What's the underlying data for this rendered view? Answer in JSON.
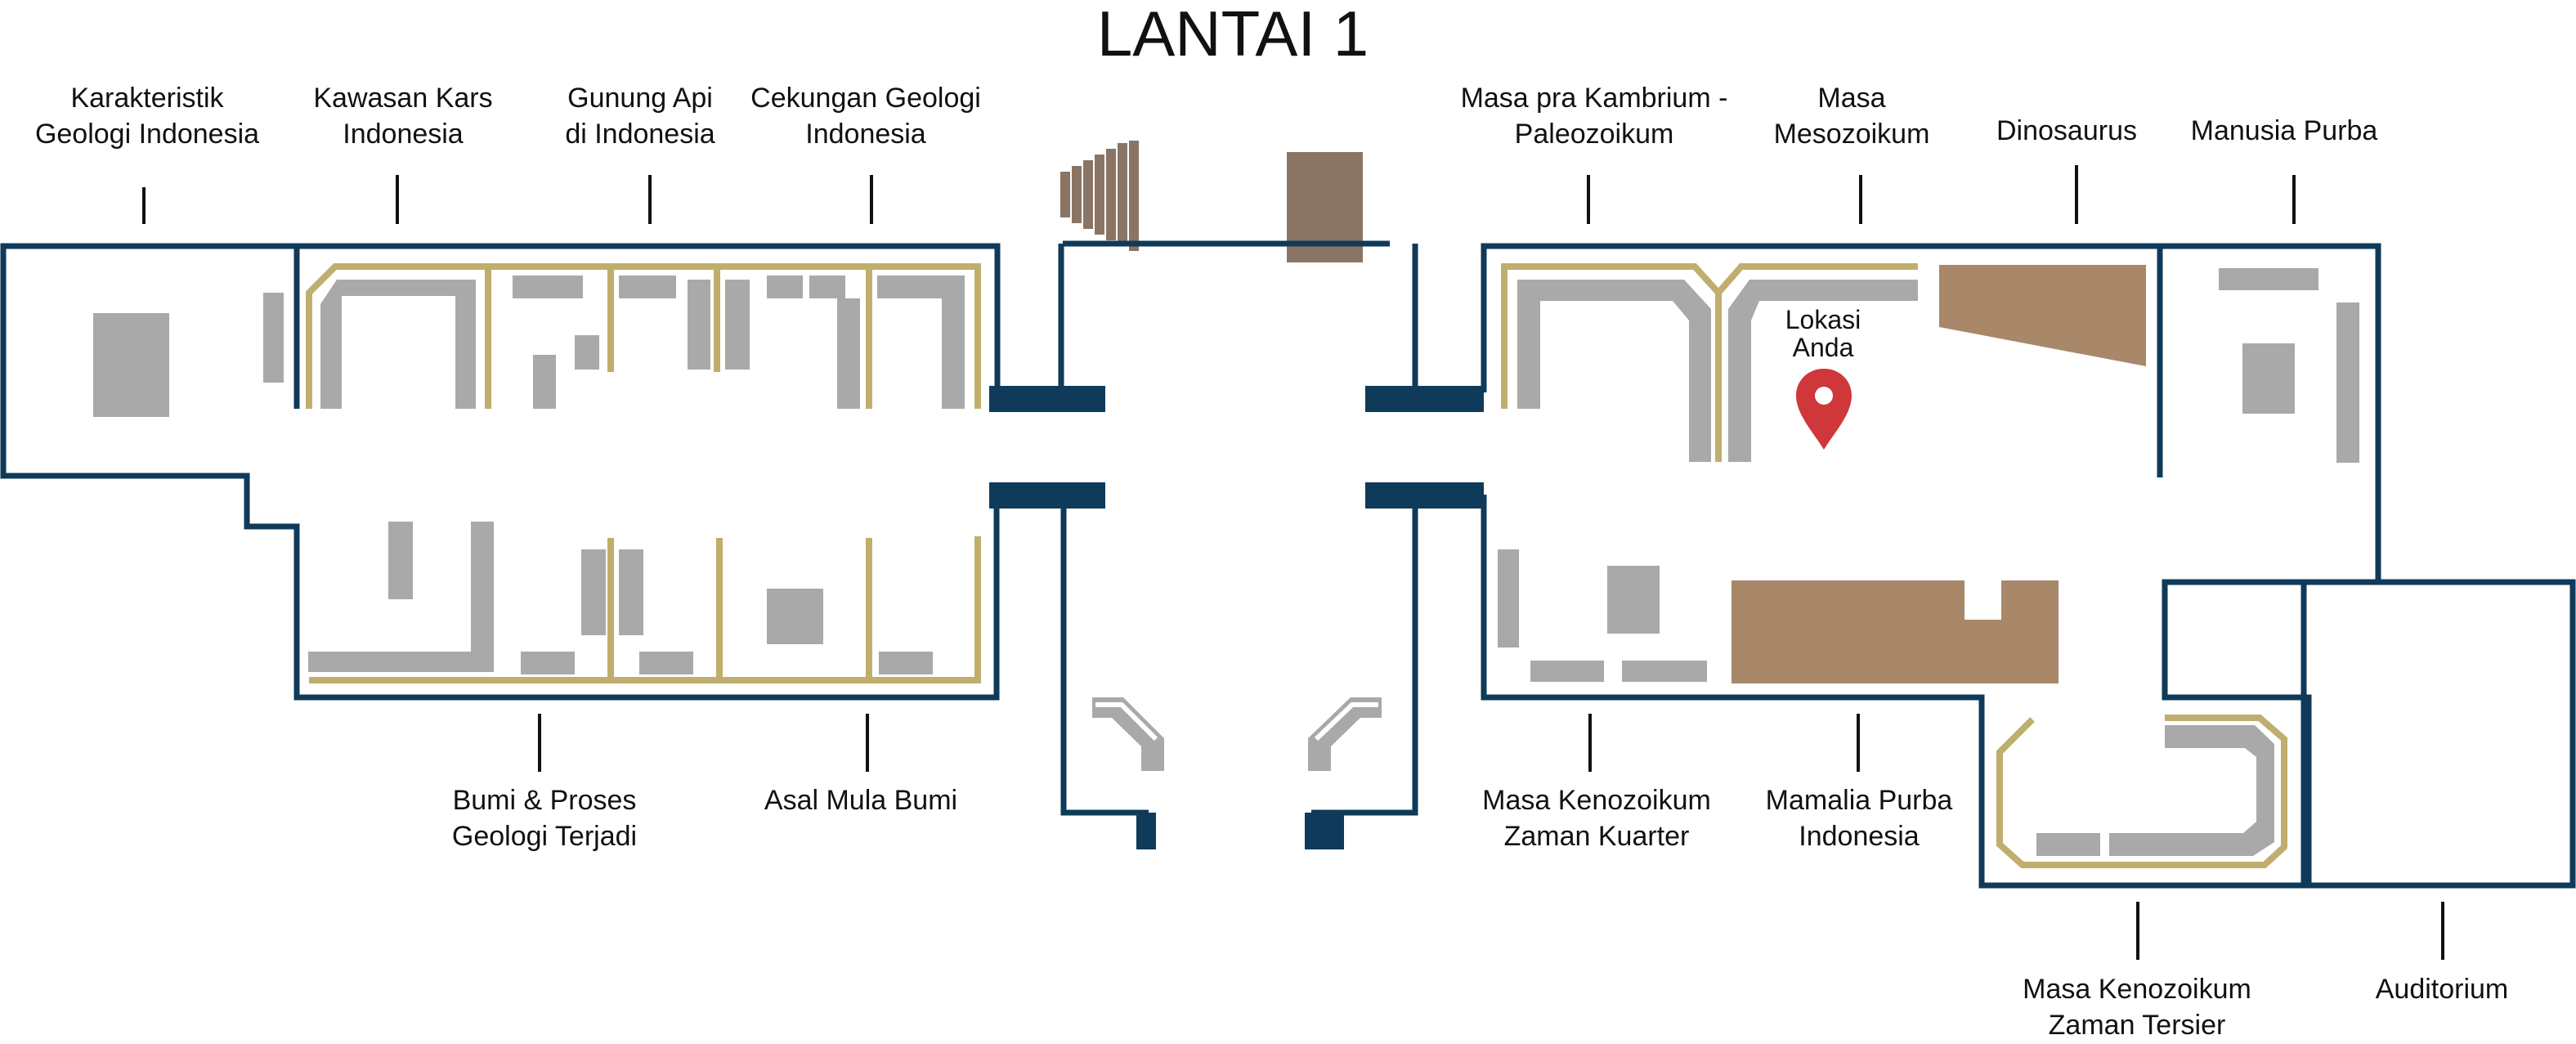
{
  "map": {
    "title": "LANTAI 1",
    "colors": {
      "wall": "#0f3a5a",
      "gold": "#bfae6e",
      "gray": "#a9a9a9",
      "brown": "#a88868",
      "stair": "#8a7565",
      "pin": "#d0373a"
    },
    "you_are_here": {
      "line1": "Lokasi",
      "line2": "Anda",
      "icon": "map-pin-icon"
    },
    "labels": {
      "karakteristik": {
        "line1": "Karakteristik",
        "line2": "Geologi Indonesia"
      },
      "kars": {
        "line1": "Kawasan Kars",
        "line2": "Indonesia"
      },
      "gunung": {
        "line1": "Gunung Api",
        "line2": "di Indonesia"
      },
      "cekungan": {
        "line1": "Cekungan Geologi",
        "line2": "Indonesia"
      },
      "kambrium": {
        "line1": "Masa pra Kambrium -",
        "line2": "Paleozoikum"
      },
      "mesozoikum": {
        "line1": "Masa",
        "line2": "Mesozoikum"
      },
      "dinosaurus": {
        "line1": "Dinosaurus"
      },
      "manusia": {
        "line1": "Manusia Purba"
      },
      "bumi_proses": {
        "line1": "Bumi & Proses",
        "line2": "Geologi Terjadi"
      },
      "asal_mula": {
        "line1": "Asal Mula Bumi"
      },
      "kuarter": {
        "line1": "Masa Kenozoikum",
        "line2": "Zaman Kuarter"
      },
      "mamalia": {
        "line1": "Mamalia Purba",
        "line2": "Indonesia"
      },
      "tersier": {
        "line1": "Masa Kenozoikum",
        "line2": "Zaman Tersier"
      },
      "auditorium": {
        "line1": "Auditorium"
      }
    }
  }
}
